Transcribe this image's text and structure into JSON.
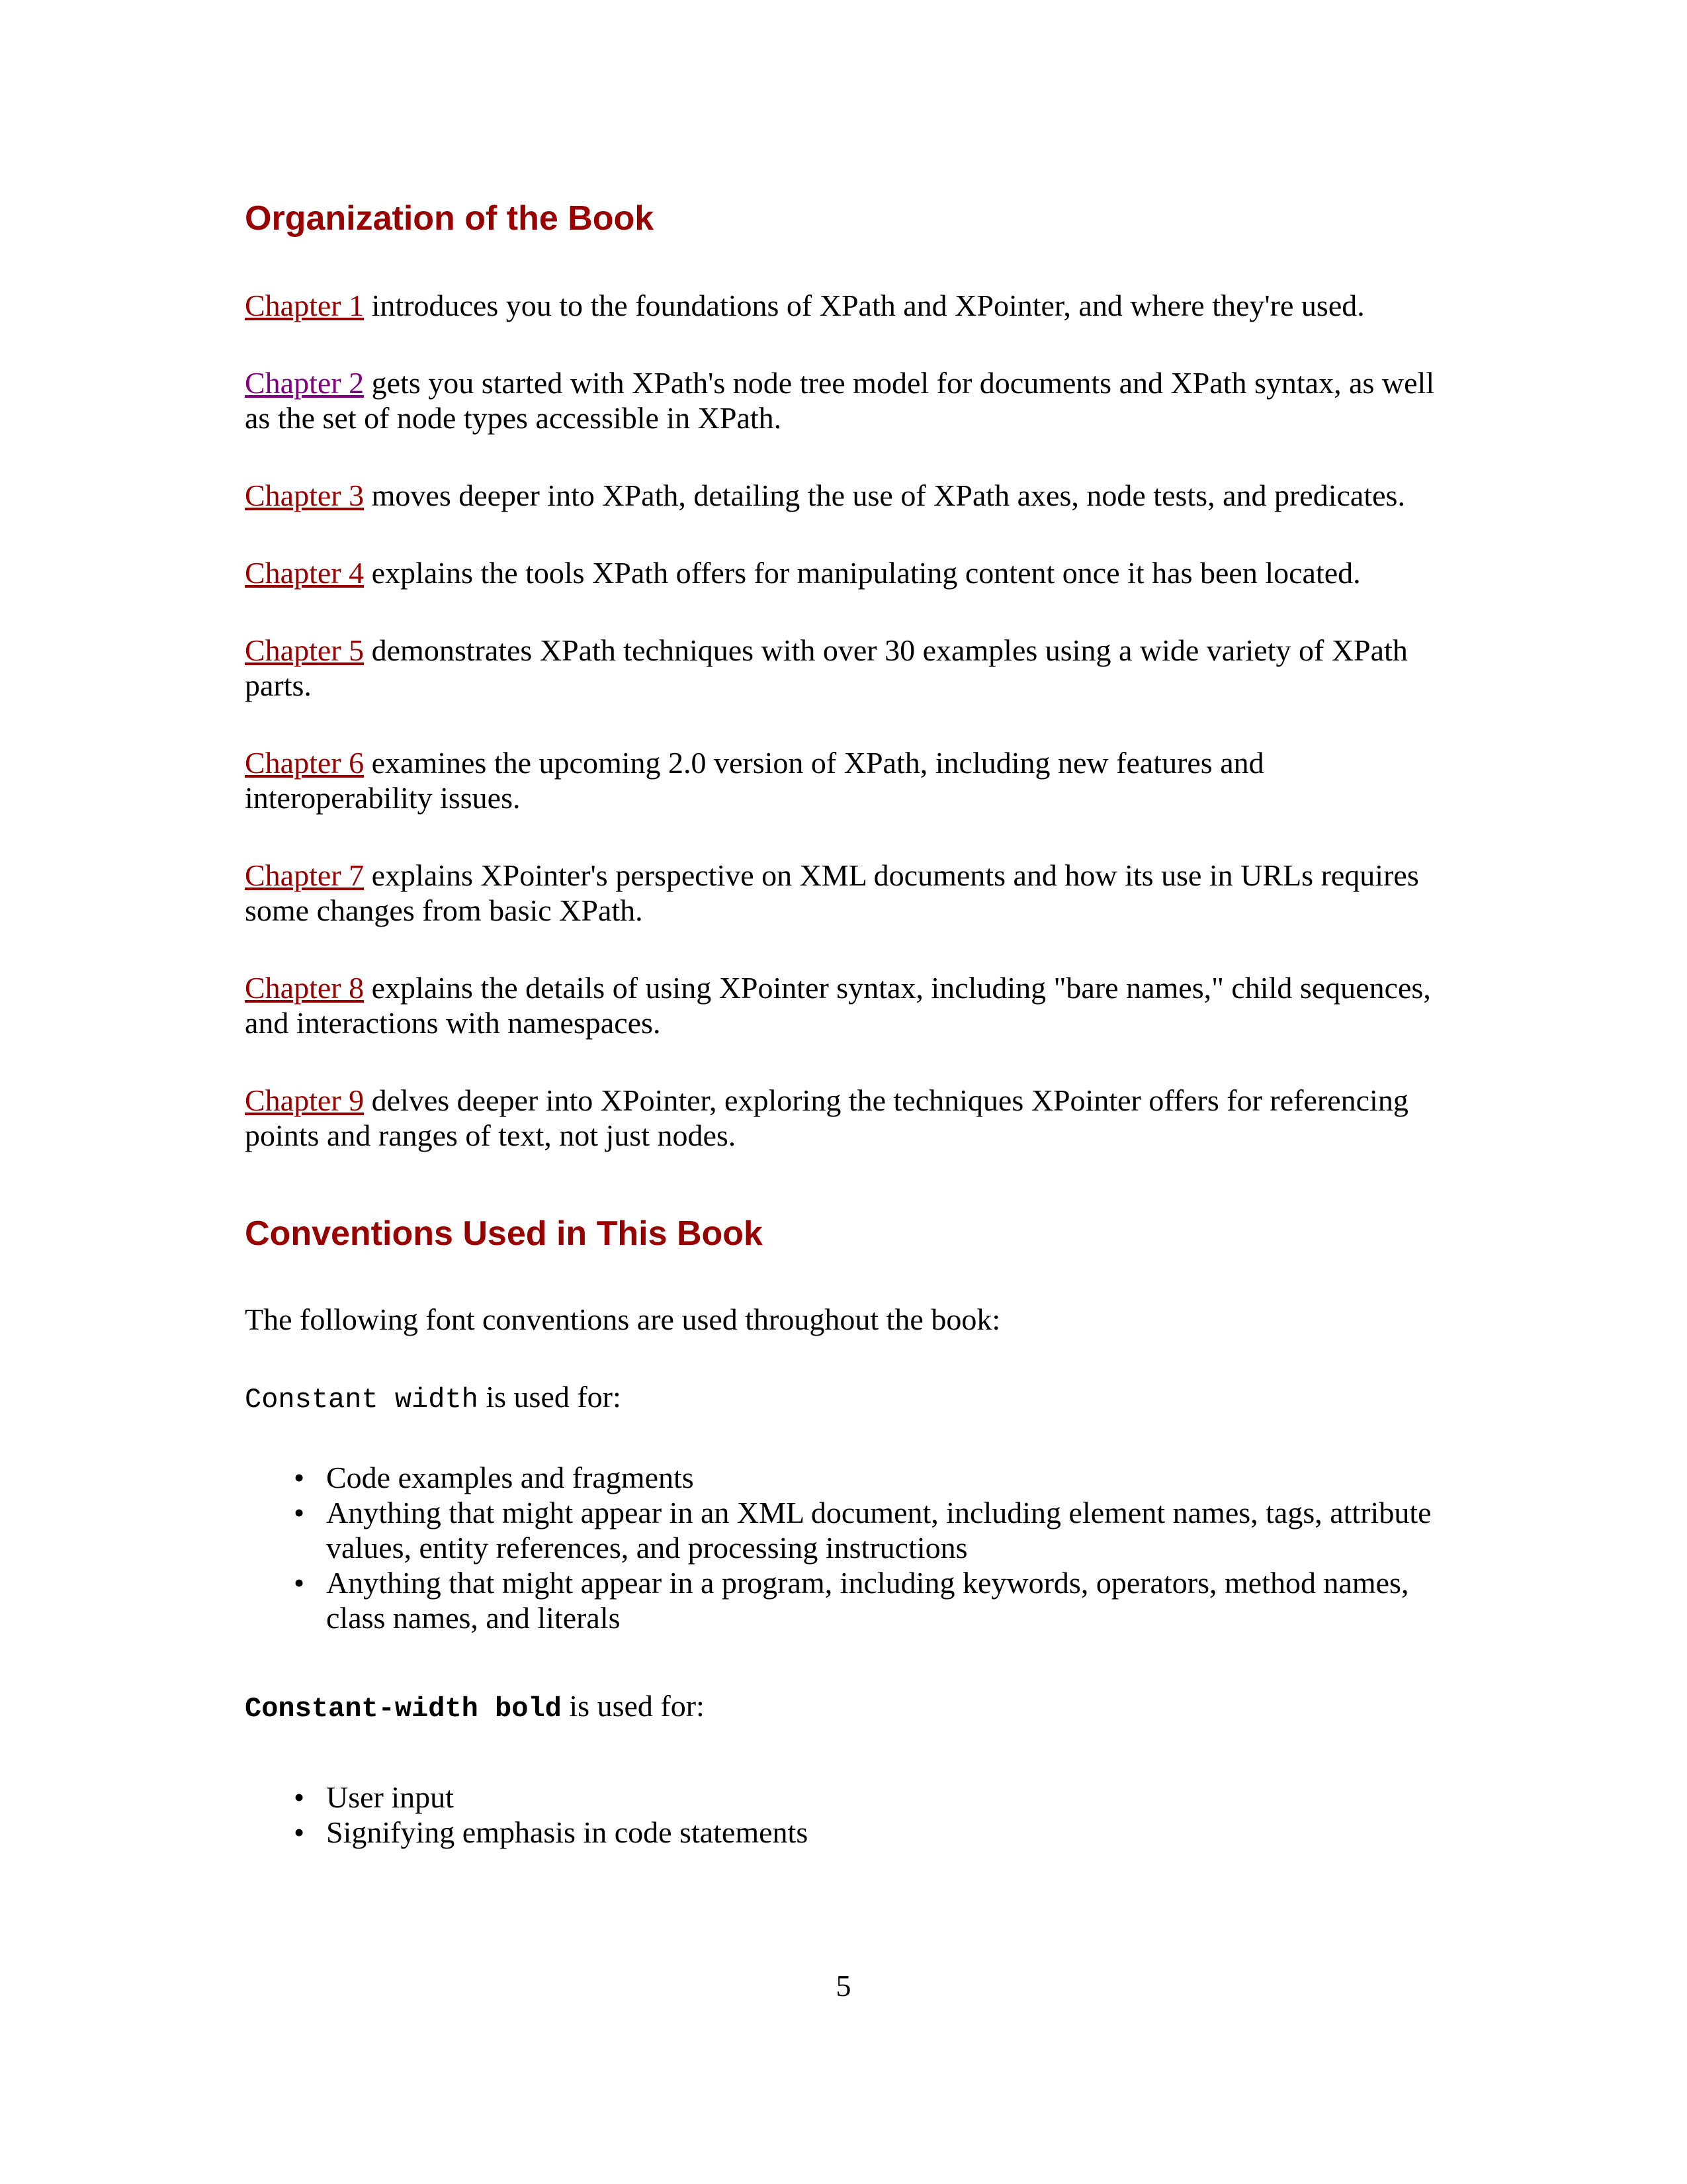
{
  "page": {
    "number": "5"
  },
  "colors": {
    "heading": "#990000",
    "chapter_link": "#990000",
    "visited_chapter_link": "#800080",
    "body_text": "#000000",
    "background": "#ffffff"
  },
  "organization_section": {
    "heading": "Organization of the Book",
    "chapters": [
      {
        "link": "Chapter 1",
        "description": " introduces you to the foundations of XPath and XPointer, and where they're used."
      },
      {
        "link": "Chapter 2",
        "description": " gets you started with XPath's node tree model for documents and XPath syntax, as well as the set of node types accessible in XPath."
      },
      {
        "link": "Chapter 3",
        "description": " moves deeper into XPath, detailing the use of XPath axes, node tests, and predicates."
      },
      {
        "link": "Chapter 4",
        "description": " explains the tools XPath offers for manipulating content once it has been located."
      },
      {
        "link": "Chapter 5",
        "description": " demonstrates XPath techniques with over 30 examples using a wide variety of XPath parts."
      },
      {
        "link": "Chapter 6",
        "description": " examines the upcoming 2.0 version of XPath, including new features and interoperability issues."
      },
      {
        "link": "Chapter 7",
        "description": " explains XPointer's perspective on XML documents and how its use in URLs requires some changes from basic XPath."
      },
      {
        "link": "Chapter 8",
        "description": " explains the details of using XPointer syntax, including \"bare names,\" child sequences, and interactions with namespaces."
      },
      {
        "link": "Chapter 9",
        "description": " delves deeper into XPointer, exploring the techniques XPointer offers for referencing points and ranges of text, not just nodes."
      }
    ]
  },
  "conventions_section": {
    "heading": "Conventions Used in This Book",
    "intro": "The following font conventions are used throughout the book:",
    "constant_width": {
      "term": "Constant width",
      "suffix": " is used for:",
      "items": [
        "Code examples and fragments",
        "Anything that might appear in an XML document, including element names, tags, attribute values, entity references, and processing instructions",
        "Anything that might appear in a program, including keywords, operators, method names, class names, and literals"
      ]
    },
    "constant_width_bold": {
      "term": "Constant-width bold",
      "suffix": " is used for:",
      "items": [
        "User input",
        "Signifying emphasis in code statements"
      ]
    }
  }
}
